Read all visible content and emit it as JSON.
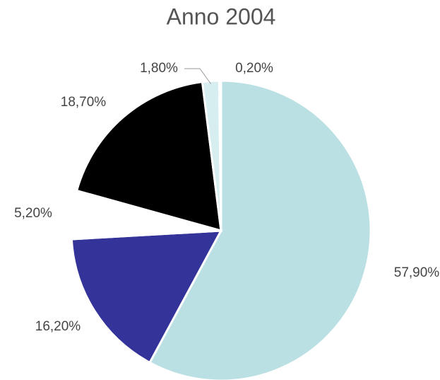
{
  "chart_data": {
    "type": "pie",
    "title": "Anno 2004",
    "values": [
      57.9,
      16.2,
      5.2,
      18.7,
      1.8,
      0.2
    ],
    "value_labels": [
      "57,90%",
      "16,20%",
      "5,20%",
      "18,70%",
      "1,80%",
      "0,20%"
    ],
    "colors": [
      "#bae0e4",
      "#333399",
      "#ffffff",
      "#000000",
      "#d7eef0",
      "#eaeaea"
    ]
  }
}
